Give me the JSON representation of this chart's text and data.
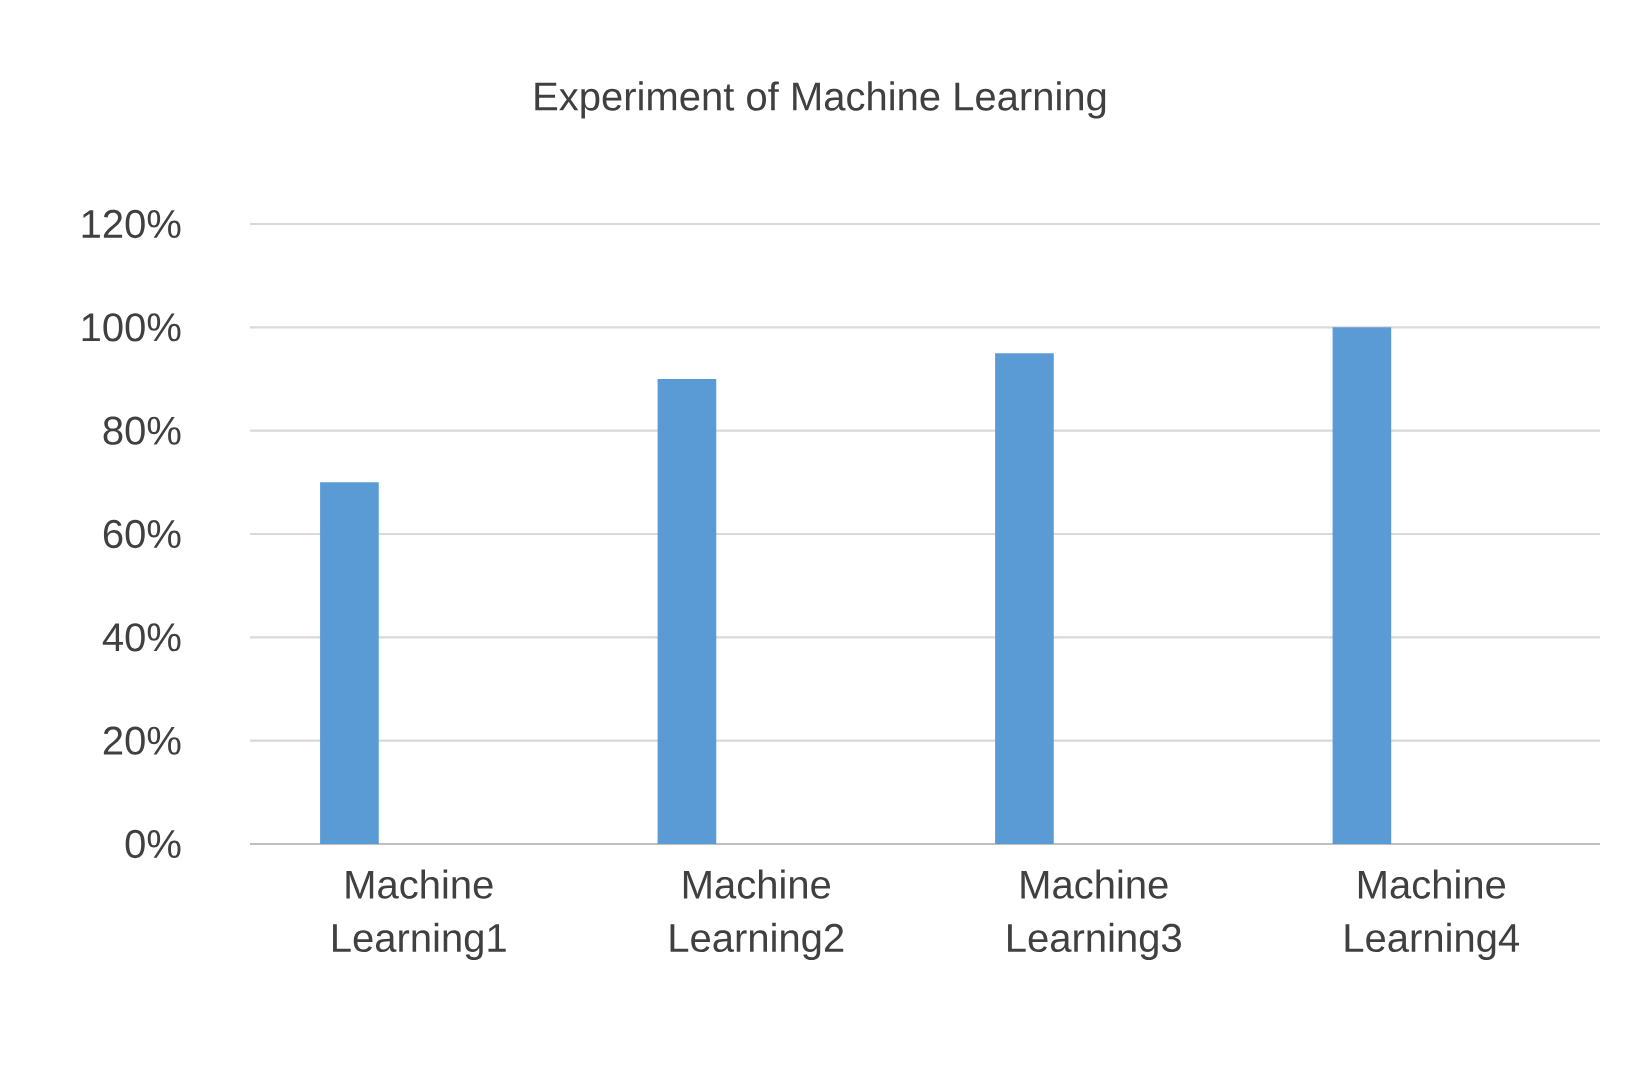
{
  "chart_data": {
    "type": "bar",
    "title": "Experiment of Machine Learning",
    "categories": [
      "Machine Learning1",
      "Machine Learning2",
      "Machine Learning3",
      "Machine Learning4"
    ],
    "values": [
      70,
      90,
      95,
      100
    ],
    "color": "#5b9bd5",
    "ylim": [
      0,
      120
    ],
    "yticks": [
      {
        "value": 0,
        "label": "0%"
      },
      {
        "value": 20,
        "label": "20%"
      },
      {
        "value": 40,
        "label": "40%"
      },
      {
        "value": 60,
        "label": "60%"
      },
      {
        "value": 80,
        "label": "80%"
      },
      {
        "value": 100,
        "label": "100%"
      },
      {
        "value": 120,
        "label": "120%"
      }
    ],
    "grid": "y"
  }
}
